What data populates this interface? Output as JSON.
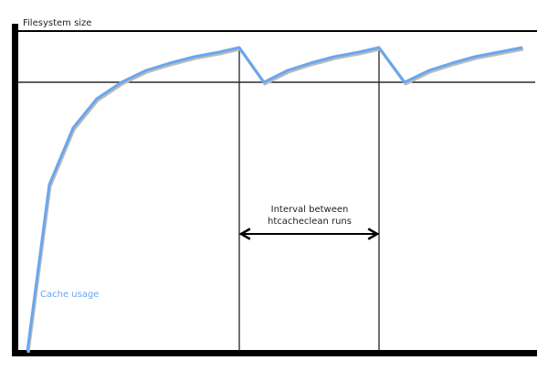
{
  "diagram": {
    "y_axis_label": "Filesystem size",
    "interval_label_line1": "Interval between",
    "interval_label_line2": "htcacheclean runs",
    "series_label": "Cache usage",
    "colors": {
      "curve": "#6aa6ee",
      "lines": "#000000"
    }
  }
}
